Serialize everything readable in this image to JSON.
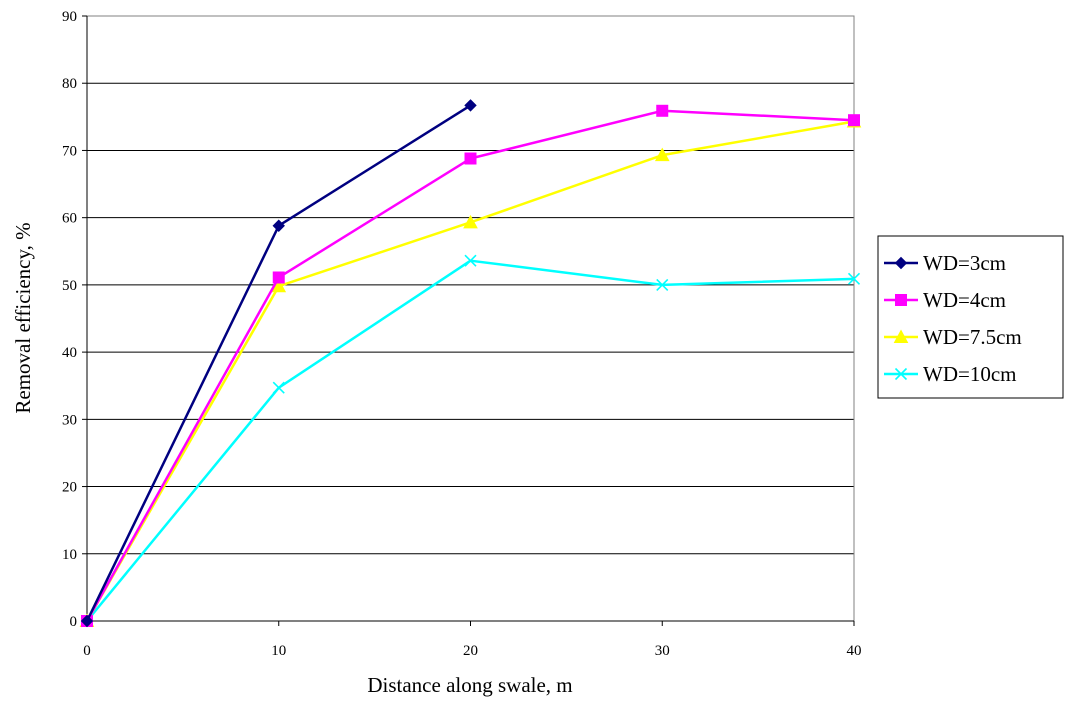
{
  "chart_data": {
    "type": "line",
    "title": "",
    "xlabel": "Distance along swale, m",
    "ylabel": "Removal efficiency, %",
    "xlim": [
      0,
      40
    ],
    "ylim": [
      0,
      90
    ],
    "xticks": [
      0,
      10,
      20,
      30,
      40
    ],
    "yticks": [
      0,
      10,
      20,
      30,
      40,
      50,
      60,
      70,
      80,
      90
    ],
    "grid": "horizontal",
    "legend_position": "right",
    "series": [
      {
        "name": "WD=3cm",
        "color": "#000080",
        "marker": "diamond",
        "x": [
          0,
          10,
          20
        ],
        "y": [
          0,
          58.8,
          76.7
        ]
      },
      {
        "name": "WD=4cm",
        "color": "#FF00FF",
        "marker": "square",
        "x": [
          0,
          10,
          20,
          30,
          40
        ],
        "y": [
          0,
          51.1,
          68.8,
          75.9,
          74.5
        ]
      },
      {
        "name": "WD=7.5cm",
        "color": "#FFFF00",
        "marker": "triangle",
        "x": [
          0,
          10,
          20,
          30,
          40
        ],
        "y": [
          0,
          49.8,
          59.3,
          69.3,
          74.3
        ]
      },
      {
        "name": "WD=10cm",
        "color": "#00FFFF",
        "marker": "x",
        "x": [
          0,
          10,
          20,
          30,
          40
        ],
        "y": [
          0,
          34.7,
          53.6,
          50.0,
          50.9
        ]
      }
    ]
  }
}
